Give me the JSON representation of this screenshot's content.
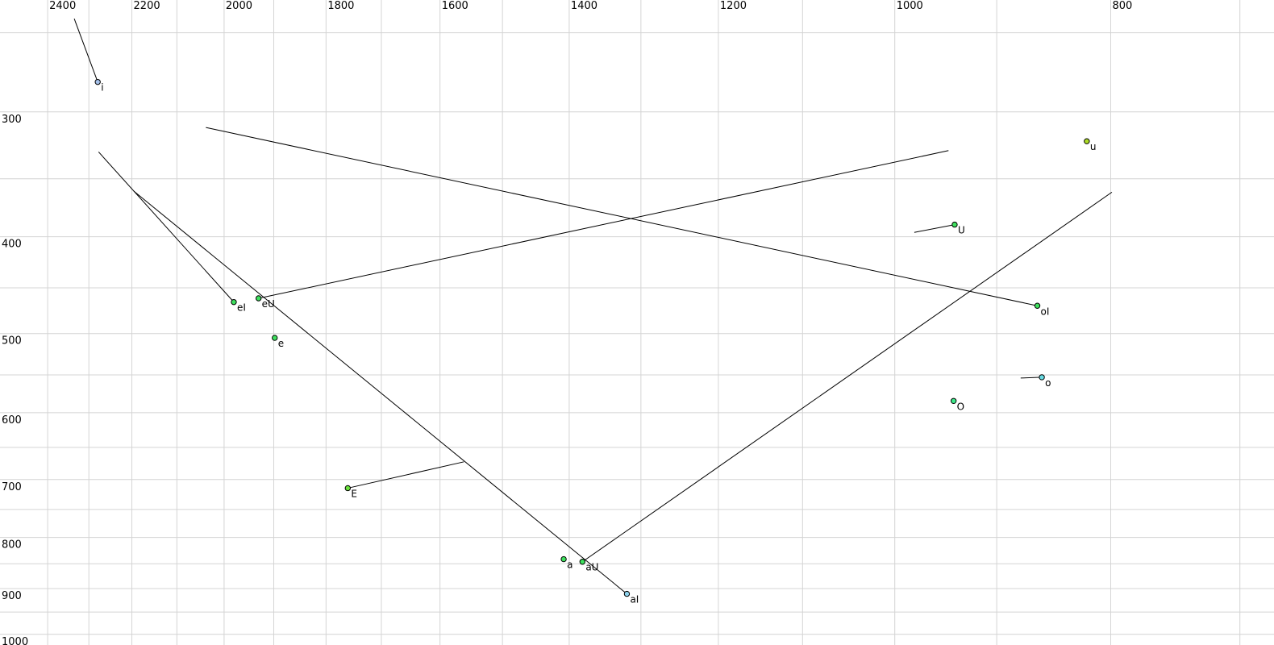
{
  "chart_data": {
    "type": "scatter",
    "title": "",
    "description": "Vowel formant chart: F2 (Hz) on top x-axis (log scale, reversed), F1 (Hz) on left y-axis (log scale, increasing downward). Points are vowels, line segments show diphthong glide trajectories.",
    "background": "#ffffff",
    "grid_color": "#d4d4d4",
    "line_color": "#000000",
    "text_color": "#000000",
    "marker_stroke": "#000000",
    "x_axis": {
      "position": "top",
      "unit": "Hz",
      "scale": "log",
      "reversed": true,
      "tick_labels": [
        "2400",
        "2200",
        "2000",
        "1800",
        "1600",
        "1400",
        "1200",
        "1000",
        "800"
      ],
      "tick_values": [
        2400,
        2200,
        2000,
        1800,
        1600,
        1400,
        1200,
        1000,
        800
      ],
      "gridline_values": [
        2400,
        2300,
        2200,
        2100,
        2000,
        1900,
        1800,
        1700,
        1600,
        1500,
        1400,
        1300,
        1200,
        1100,
        1000,
        900,
        800,
        700
      ],
      "range": [
        2460,
        660
      ]
    },
    "y_axis": {
      "position": "left",
      "unit": "Hz",
      "scale": "log",
      "increasing": "down",
      "tick_labels": [
        "300",
        "400",
        "500",
        "600",
        "700",
        "800",
        "900",
        "1000"
      ],
      "tick_values": [
        300,
        400,
        500,
        600,
        700,
        800,
        900,
        1000
      ],
      "gridline_values": [
        250,
        300,
        350,
        400,
        450,
        500,
        550,
        600,
        650,
        700,
        750,
        800,
        850,
        900,
        950,
        1000
      ],
      "range": [
        232,
        1020
      ]
    },
    "points": [
      {
        "label": "i",
        "f2": 2279,
        "f1": 280,
        "color": "#a6c2ec",
        "glide": {
          "f2": 2335,
          "f1": 242
        }
      },
      {
        "label": "eI",
        "f2": 1980,
        "f1": 465,
        "color": "#3ee05e",
        "glide": {
          "f2": 2277,
          "f1": 329
        }
      },
      {
        "label": "eU",
        "f2": 1930,
        "f1": 461,
        "color": "#3ee05e",
        "glide": {
          "f2": 946,
          "f1": 328
        }
      },
      {
        "label": "e",
        "f2": 1898,
        "f1": 505,
        "color": "#3ee05e",
        "glide": null
      },
      {
        "label": "E",
        "f2": 1760,
        "f1": 714,
        "color": "#6ae23c",
        "glide": {
          "f2": 1561,
          "f1": 672
        }
      },
      {
        "label": "a",
        "f2": 1408,
        "f1": 841,
        "color": "#3ee05e",
        "glide": null
      },
      {
        "label": "aU",
        "f2": 1381,
        "f1": 846,
        "color": "#3ee05e",
        "glide": {
          "f2": 799,
          "f1": 361
        }
      },
      {
        "label": "aI",
        "f2": 1319,
        "f1": 911,
        "color": "#8ed2ec",
        "glide": {
          "f2": 2196,
          "f1": 360
        }
      },
      {
        "label": "u",
        "f2": 820,
        "f1": 321,
        "color": "#addc26",
        "glide": null
      },
      {
        "label": "U",
        "f2": 940,
        "f1": 389,
        "color": "#3ee05e",
        "glide": {
          "f2": 980,
          "f1": 396
        }
      },
      {
        "label": "oI",
        "f2": 863,
        "f1": 469,
        "color": "#3ee05e",
        "glide": {
          "f2": 2038,
          "f1": 311
        }
      },
      {
        "label": "o",
        "f2": 859,
        "f1": 553,
        "color": "#68dce4",
        "glide": {
          "f2": 878,
          "f1": 554
        }
      },
      {
        "label": "O",
        "f2": 941,
        "f1": 584,
        "color": "#3ee98a",
        "glide": null
      }
    ]
  }
}
